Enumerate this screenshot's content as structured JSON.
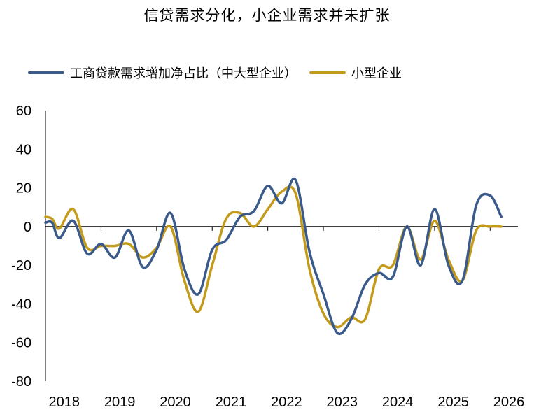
{
  "chart_data": {
    "type": "line",
    "title": "信贷需求分化，小企业需求并未扩张",
    "xlabel": "",
    "ylabel": "",
    "ylim": [
      -80,
      60
    ],
    "yticks": [
      60,
      40,
      20,
      0,
      -20,
      -40,
      -60,
      -80
    ],
    "xlim": [
      2018.0,
      2026.5
    ],
    "xticks": [
      "2018",
      "2019",
      "2020",
      "2021",
      "2022",
      "2023",
      "2024",
      "2025",
      "2026"
    ],
    "grid": false,
    "legend_position": "top",
    "series": [
      {
        "name": "工商贷款需求增加净占比（中大型企业）",
        "color": "#3a5a8c",
        "points": [
          [
            2018.0,
            2
          ],
          [
            2018.12,
            2
          ],
          [
            2018.25,
            -6
          ],
          [
            2018.5,
            3
          ],
          [
            2018.75,
            -14
          ],
          [
            2019.0,
            -9
          ],
          [
            2019.25,
            -16
          ],
          [
            2019.5,
            -2
          ],
          [
            2019.75,
            -21
          ],
          [
            2020.0,
            -12
          ],
          [
            2020.25,
            7
          ],
          [
            2020.5,
            -22
          ],
          [
            2020.75,
            -35
          ],
          [
            2021.0,
            -12
          ],
          [
            2021.25,
            -7
          ],
          [
            2021.5,
            5
          ],
          [
            2021.75,
            8
          ],
          [
            2022.0,
            21
          ],
          [
            2022.25,
            12
          ],
          [
            2022.5,
            24
          ],
          [
            2022.75,
            -13
          ],
          [
            2023.0,
            -35
          ],
          [
            2023.25,
            -55
          ],
          [
            2023.5,
            -48
          ],
          [
            2023.75,
            -30
          ],
          [
            2024.0,
            -24
          ],
          [
            2024.25,
            -26
          ],
          [
            2024.5,
            0
          ],
          [
            2024.75,
            -20
          ],
          [
            2025.0,
            9
          ],
          [
            2025.25,
            -20
          ],
          [
            2025.5,
            -28
          ],
          [
            2025.75,
            11
          ],
          [
            2026.0,
            16
          ],
          [
            2026.2,
            5
          ]
        ]
      },
      {
        "name": "小型企业",
        "color": "#c49a1a",
        "points": [
          [
            2018.0,
            5
          ],
          [
            2018.12,
            4
          ],
          [
            2018.25,
            -1
          ],
          [
            2018.5,
            9
          ],
          [
            2018.75,
            -11
          ],
          [
            2019.0,
            -10
          ],
          [
            2019.25,
            -10
          ],
          [
            2019.5,
            -9
          ],
          [
            2019.75,
            -16
          ],
          [
            2020.0,
            -11
          ],
          [
            2020.25,
            0
          ],
          [
            2020.5,
            -28
          ],
          [
            2020.75,
            -44
          ],
          [
            2021.0,
            -20
          ],
          [
            2021.25,
            4
          ],
          [
            2021.5,
            7
          ],
          [
            2021.75,
            0
          ],
          [
            2022.0,
            9
          ],
          [
            2022.25,
            18
          ],
          [
            2022.5,
            17
          ],
          [
            2022.75,
            -22
          ],
          [
            2023.0,
            -45
          ],
          [
            2023.25,
            -52
          ],
          [
            2023.5,
            -47
          ],
          [
            2023.75,
            -48
          ],
          [
            2024.0,
            -22
          ],
          [
            2024.25,
            -20
          ],
          [
            2024.5,
            0
          ],
          [
            2024.75,
            -17
          ],
          [
            2025.0,
            3
          ],
          [
            2025.25,
            -17
          ],
          [
            2025.5,
            -28
          ],
          [
            2025.75,
            -2
          ],
          [
            2026.0,
            0
          ],
          [
            2026.2,
            0
          ]
        ]
      }
    ]
  }
}
